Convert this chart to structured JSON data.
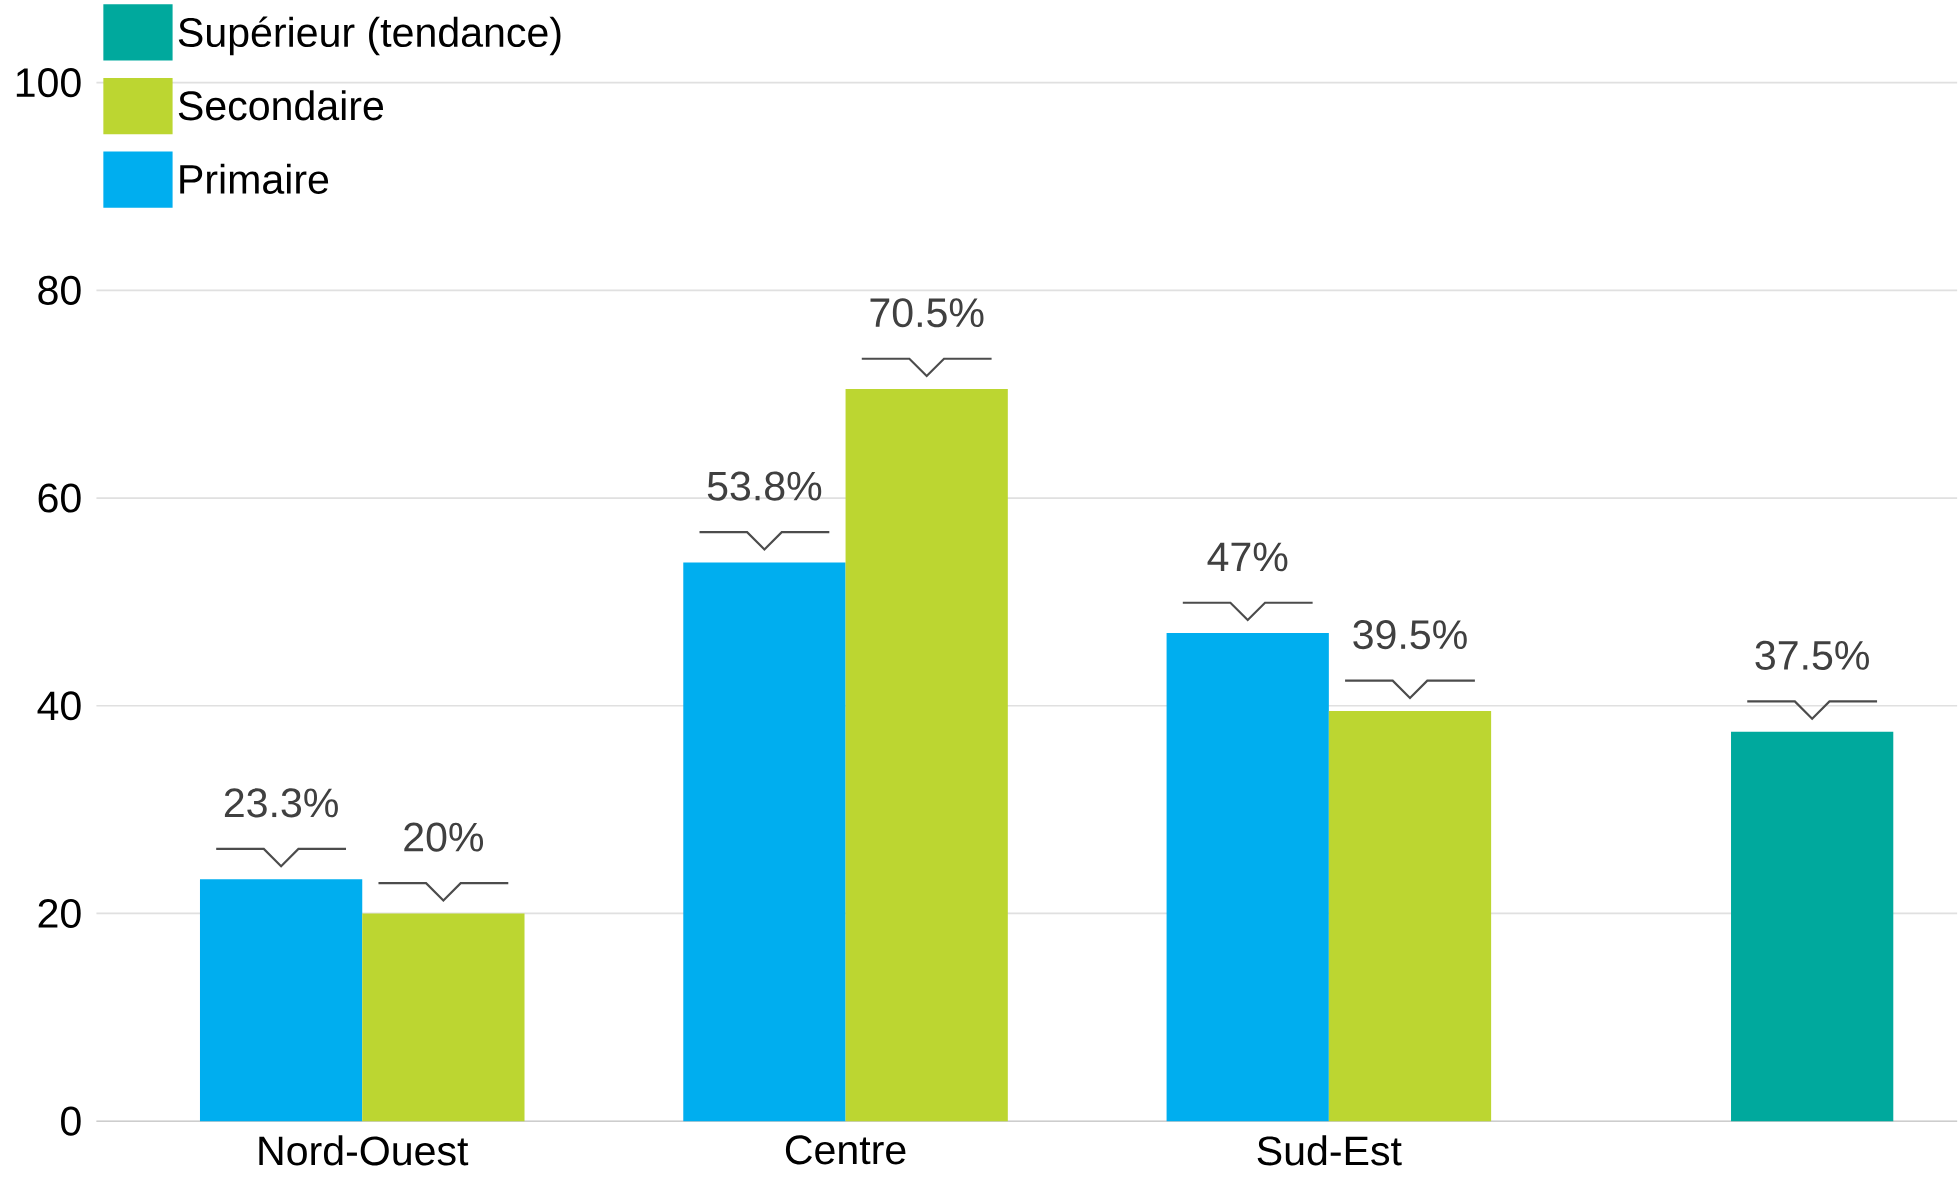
{
  "chart_data": {
    "type": "bar",
    "categories": [
      "Nord-Ouest",
      "Centre",
      "Sud-Est",
      null
    ],
    "series": [
      {
        "name": "Primaire",
        "color": "#00aeef",
        "values": [
          23.3,
          53.8,
          47,
          null
        ],
        "value_labels": [
          "23.3%",
          "53.8%",
          "47%",
          null
        ]
      },
      {
        "name": "Secondaire",
        "color": "#bcd631",
        "values": [
          20,
          70.5,
          39.5,
          null
        ],
        "value_labels": [
          "20%",
          "70.5%",
          "39.5%",
          null
        ]
      },
      {
        "name": "Supérieur (tendance)",
        "color": "#00a99d",
        "values": [
          null,
          null,
          null,
          37.5
        ],
        "value_labels": [
          null,
          null,
          null,
          "37.5%"
        ]
      }
    ],
    "ylim": [
      0,
      100
    ],
    "yticks": [
      0,
      20,
      40,
      60,
      80,
      100
    ],
    "grid": "y",
    "legend": "top left"
  }
}
